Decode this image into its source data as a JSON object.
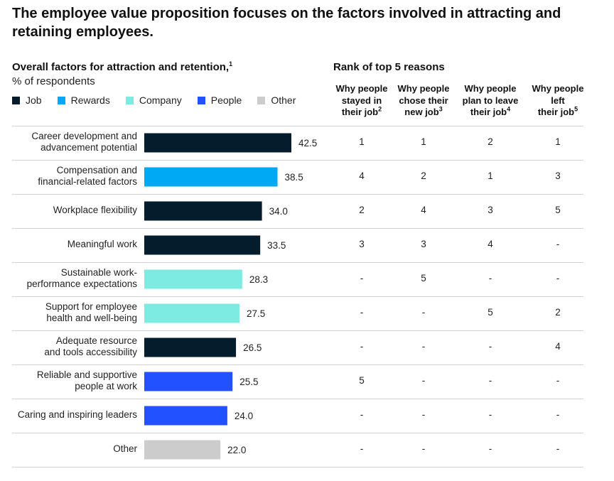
{
  "title": "The employee value proposition focuses on the factors involved in attracting and retaining employees.",
  "left_panel": {
    "title": "Overall factors for attraction and retention,",
    "title_footnote": "1",
    "unit": "% of respondents"
  },
  "legend": [
    {
      "label": "Job",
      "color": "#051c2c"
    },
    {
      "label": "Rewards",
      "color": "#00a9f4"
    },
    {
      "label": "Company",
      "color": "#7eebe3"
    },
    {
      "label": "People",
      "color": "#2251ff"
    },
    {
      "label": "Other",
      "color": "#cccccc"
    }
  ],
  "rank_panel": {
    "title": "Rank of top 5 reasons",
    "columns": [
      {
        "lines": [
          "Why people",
          "stayed in",
          "their job"
        ],
        "footnote": "2"
      },
      {
        "lines": [
          "Why people",
          "chose their",
          "new job"
        ],
        "footnote": "3"
      },
      {
        "lines": [
          "Why people",
          "plan to leave",
          "their job"
        ],
        "footnote": "4"
      },
      {
        "lines": [
          "Why people",
          "left",
          "their job"
        ],
        "footnote": "5"
      }
    ]
  },
  "chart_data": {
    "type": "bar",
    "orientation": "horizontal",
    "title": "Overall factors for attraction and retention",
    "xlabel": "% of respondents",
    "xlim": [
      0,
      50
    ],
    "categories": [
      "Career development and advancement potential",
      "Compensation and financial-related factors",
      "Workplace flexibility",
      "Meaningful work",
      "Sustainable work-performance expectations",
      "Support for employee health and well-being",
      "Adequate resource and tools accessibility",
      "Reliable and supportive people at work",
      "Caring and inspiring leaders",
      "Other"
    ],
    "values": [
      42.5,
      38.5,
      34.0,
      33.5,
      28.3,
      27.5,
      26.5,
      25.5,
      24.0,
      22.0
    ],
    "value_labels": [
      "42.5",
      "38.5",
      "34.0",
      "33.5",
      "28.3",
      "27.5",
      "26.5",
      "25.5",
      "24.0",
      "22.0"
    ],
    "groups": [
      "Job",
      "Rewards",
      "Job",
      "Job",
      "Company",
      "Company",
      "Job",
      "People",
      "People",
      "Other"
    ]
  },
  "rows": [
    {
      "label_lines": [
        "Career development and",
        "advancement potential"
      ],
      "ranks": [
        "1",
        "1",
        "2",
        "1"
      ]
    },
    {
      "label_lines": [
        "Compensation and",
        "financial-related factors"
      ],
      "ranks": [
        "4",
        "2",
        "1",
        "3"
      ]
    },
    {
      "label_lines": [
        "Workplace flexibility"
      ],
      "ranks": [
        "2",
        "4",
        "3",
        "5"
      ]
    },
    {
      "label_lines": [
        "Meaningful work"
      ],
      "ranks": [
        "3",
        "3",
        "4",
        "-"
      ]
    },
    {
      "label_lines": [
        "Sustainable work-",
        "performance expectations"
      ],
      "ranks": [
        "-",
        "5",
        "-",
        "-"
      ]
    },
    {
      "label_lines": [
        "Support for employee",
        "health and well-being"
      ],
      "ranks": [
        "-",
        "-",
        "5",
        "2"
      ]
    },
    {
      "label_lines": [
        "Adequate resource",
        "and tools accessibility"
      ],
      "ranks": [
        "-",
        "-",
        "-",
        "4"
      ]
    },
    {
      "label_lines": [
        "Reliable and supportive",
        "people at work"
      ],
      "ranks": [
        "5",
        "-",
        "-",
        "-"
      ]
    },
    {
      "label_lines": [
        "Caring and inspiring leaders"
      ],
      "ranks": [
        "-",
        "-",
        "-",
        "-"
      ]
    },
    {
      "label_lines": [
        "Other"
      ],
      "ranks": [
        "-",
        "-",
        "-",
        "-"
      ]
    }
  ]
}
